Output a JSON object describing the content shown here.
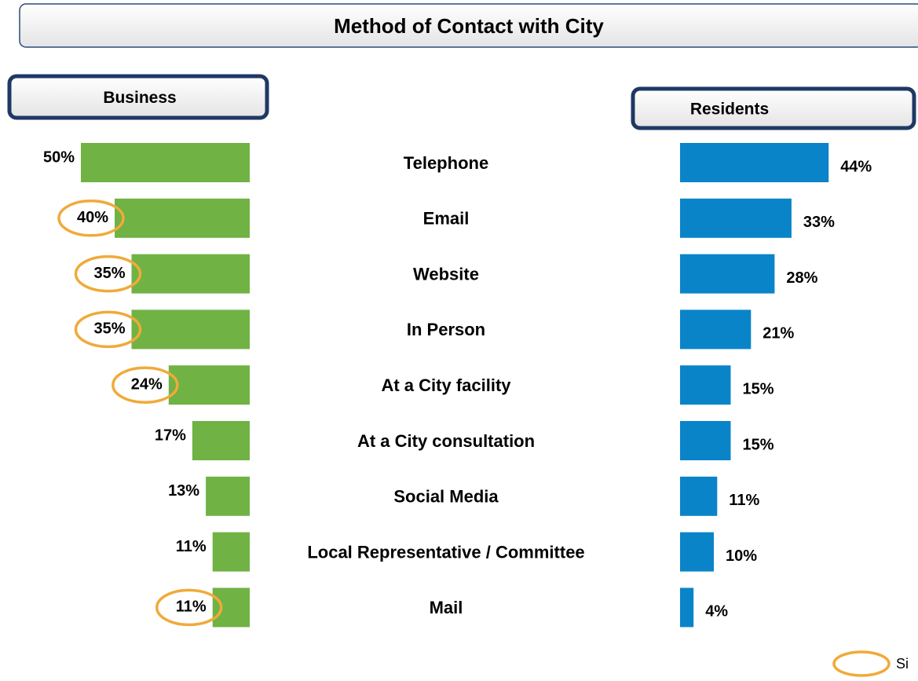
{
  "chart_data": {
    "type": "bar",
    "title": "Method of Contact with City",
    "categories": [
      "Telephone",
      "Email",
      "Website",
      "In Person",
      "At a City facility",
      "At a City consultation",
      "Social Media",
      "Local Representative / Committee",
      "Mail"
    ],
    "series": [
      {
        "name": "Business",
        "color": "#70b244",
        "values": [
          50,
          40,
          35,
          35,
          24,
          17,
          13,
          11,
          11
        ],
        "value_labels": [
          "50%",
          "40%",
          "35%",
          "35%",
          "24%",
          "17%",
          "13%",
          "11%",
          "11%"
        ],
        "highlight": [
          false,
          true,
          true,
          true,
          true,
          false,
          false,
          false,
          true
        ]
      },
      {
        "name": "Residents",
        "color": "#0a84c8",
        "values": [
          44,
          33,
          28,
          21,
          15,
          15,
          11,
          10,
          4
        ],
        "value_labels": [
          "44%",
          "33%",
          "28%",
          "21%",
          "15%",
          "15%",
          "11%",
          "10%",
          "4%"
        ]
      }
    ],
    "highlight_color": "#f0aa3a",
    "legend": {
      "label": "Si"
    }
  }
}
